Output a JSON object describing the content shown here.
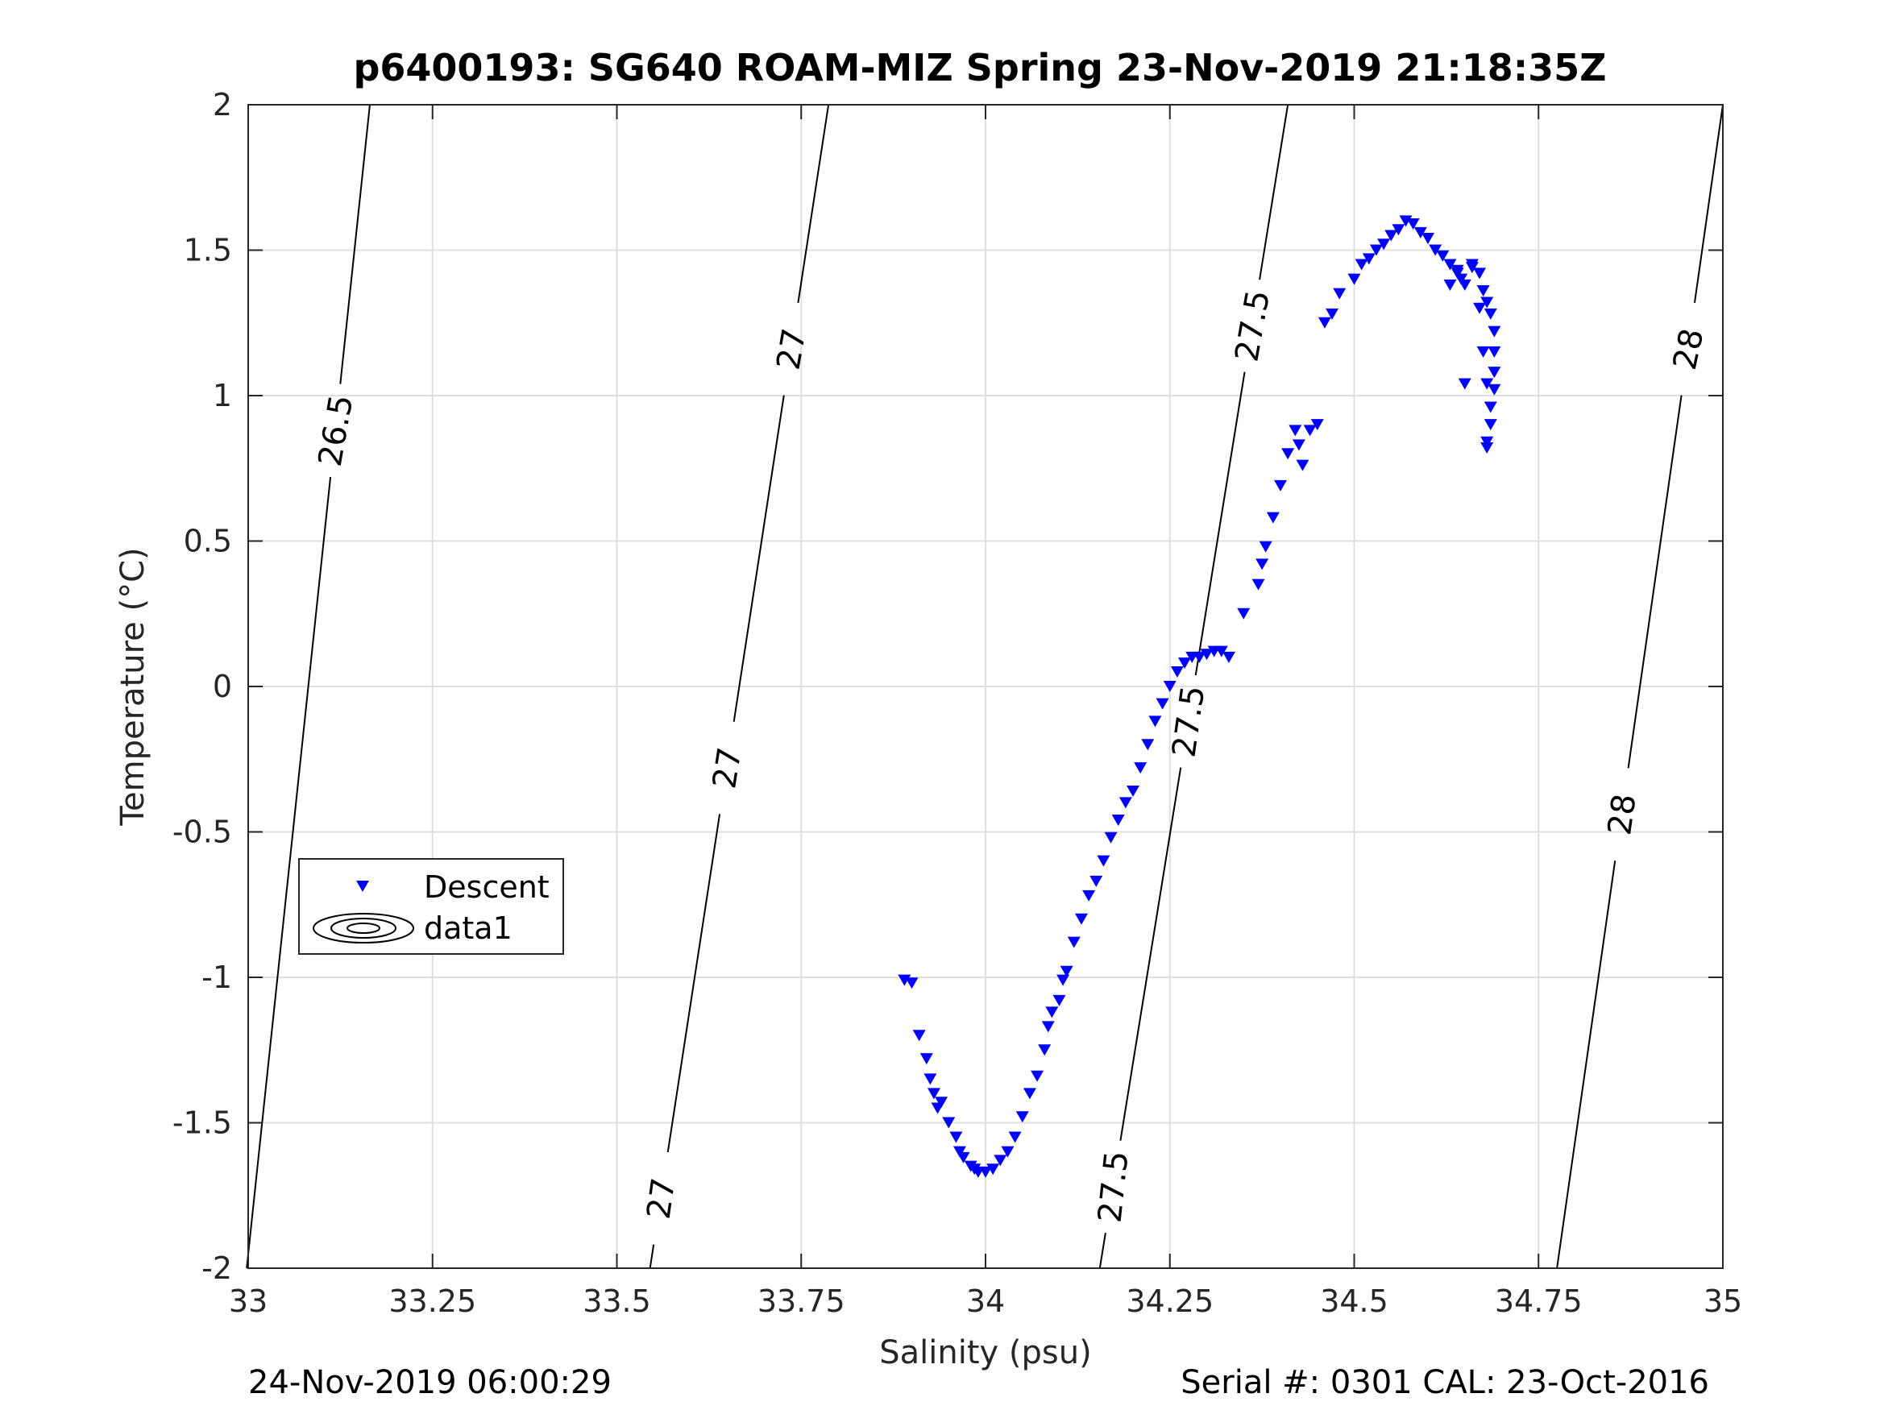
{
  "chart_data": {
    "type": "scatter",
    "title": "p6400193: SG640 ROAM-MIZ Spring 23-Nov-2019 21:18:35Z",
    "xlabel": "Salinity (psu)",
    "ylabel": "Temperature (°C)",
    "xlim": [
      33,
      35
    ],
    "ylim": [
      -2,
      2
    ],
    "xticks": [
      33,
      33.25,
      33.5,
      33.75,
      34,
      34.25,
      34.5,
      34.75,
      35
    ],
    "xtick_labels": [
      "33",
      "33.25",
      "33.5",
      "33.75",
      "34",
      "34.25",
      "34.5",
      "34.75",
      "35"
    ],
    "yticks": [
      -2,
      -1.5,
      -1,
      -0.5,
      0,
      0.5,
      1,
      1.5,
      2
    ],
    "ytick_labels": [
      "-2",
      "-1.5",
      "-1",
      "-0.5",
      "0",
      "0.5",
      "1",
      "1.5",
      "2"
    ],
    "grid": true,
    "legend_position": "lower-left",
    "legend": [
      "Descent",
      "data1"
    ],
    "colors": {
      "descent": "#0000ff",
      "contour": "#000000",
      "grid": "#dfdfdf"
    },
    "series": [
      {
        "name": "Descent",
        "marker": "down-triangle",
        "x": [
          33.89,
          33.9,
          33.91,
          33.92,
          33.925,
          33.93,
          33.935,
          33.94,
          33.95,
          33.96,
          33.965,
          33.97,
          33.98,
          33.985,
          33.99,
          34.0,
          34.01,
          34.02,
          34.03,
          34.04,
          34.05,
          34.06,
          34.07,
          34.08,
          34.085,
          34.09,
          34.1,
          34.105,
          34.11,
          34.12,
          34.13,
          34.14,
          34.15,
          34.16,
          34.17,
          34.18,
          34.19,
          34.2,
          34.21,
          34.22,
          34.23,
          34.24,
          34.25,
          34.26,
          34.27,
          34.28,
          34.29,
          34.3,
          34.31,
          34.32,
          34.33,
          34.35,
          34.37,
          34.375,
          34.38,
          34.39,
          34.4,
          34.41,
          34.42,
          34.425,
          34.43,
          34.44,
          34.45,
          34.46,
          34.47,
          34.48,
          34.5,
          34.51,
          34.52,
          34.53,
          34.54,
          34.55,
          34.56,
          34.57,
          34.58,
          34.59,
          34.6,
          34.61,
          34.62,
          34.63,
          34.64,
          34.645,
          34.65,
          34.66,
          34.67,
          34.675,
          34.68,
          34.685,
          34.69,
          34.69,
          34.69,
          34.69,
          34.685,
          34.685,
          34.68,
          34.68,
          34.68,
          34.675,
          34.67,
          34.66,
          34.65,
          34.64,
          34.63
        ],
        "y": [
          -1.01,
          -1.02,
          -1.2,
          -1.28,
          -1.35,
          -1.4,
          -1.45,
          -1.43,
          -1.5,
          -1.55,
          -1.6,
          -1.62,
          -1.65,
          -1.66,
          -1.67,
          -1.67,
          -1.66,
          -1.63,
          -1.6,
          -1.55,
          -1.48,
          -1.4,
          -1.34,
          -1.25,
          -1.17,
          -1.12,
          -1.08,
          -1.01,
          -0.98,
          -0.88,
          -0.8,
          -0.72,
          -0.67,
          -0.6,
          -0.52,
          -0.46,
          -0.4,
          -0.36,
          -0.28,
          -0.2,
          -0.12,
          -0.06,
          0.0,
          0.05,
          0.08,
          0.1,
          0.1,
          0.11,
          0.12,
          0.12,
          0.1,
          0.25,
          0.35,
          0.42,
          0.48,
          0.58,
          0.69,
          0.8,
          0.88,
          0.83,
          0.76,
          0.88,
          0.9,
          1.25,
          1.28,
          1.35,
          1.4,
          1.45,
          1.47,
          1.5,
          1.52,
          1.55,
          1.57,
          1.6,
          1.59,
          1.56,
          1.54,
          1.5,
          1.48,
          1.45,
          1.43,
          1.4,
          1.38,
          1.44,
          1.42,
          1.36,
          1.32,
          1.28,
          1.22,
          1.15,
          1.08,
          1.02,
          0.96,
          0.9,
          0.84,
          0.82,
          1.04,
          1.15,
          1.3,
          1.45,
          1.04,
          1.42,
          1.38
        ]
      }
    ],
    "contour_labels": [
      "26.5",
      "27",
      "27",
      "27",
      "27.5",
      "27.5",
      "27.5",
      "28",
      "28"
    ]
  },
  "footer": {
    "date": "24-Nov-2019 06:00:29",
    "serial": "Serial #: 0301  CAL: 23-Oct-2016"
  }
}
